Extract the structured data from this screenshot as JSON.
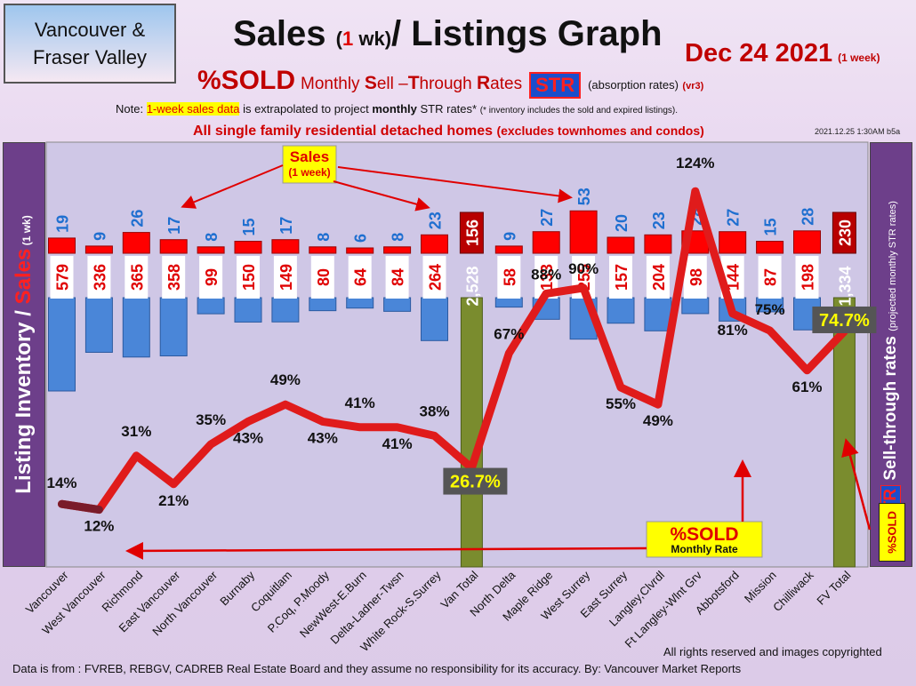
{
  "header": {
    "region_line1": "Vancouver &",
    "region_line2": "Fraser Valley",
    "title_a": "Sales ",
    "title_b": "(",
    "title_c": "1",
    "title_d": " wk)",
    "title_e": "/ Listings Graph",
    "date": "Dec  24  2021",
    "date_note": "(1 week)",
    "sub_sold": "%SOLD",
    "sub_S": "S",
    "sub_ell": "ell –",
    "sub_T": "T",
    "sub_hrough": "hrough ",
    "sub_R": "R",
    "sub_ates": "ates",
    "sub_monthly": "Monthly ",
    "str_badge": "STR",
    "abs_text": "(absorption rates)",
    "version": "(vr3)",
    "note_prefix": "Note: ",
    "note_highlight": "1-week sales data",
    "note_mid": " is extrapolated to project ",
    "note_bold": "monthly",
    "note_end": " STR rates* ",
    "note_tiny": "(* inventory includes the sold and expired listings).",
    "note2_main": "All single family residential detached homes ",
    "note2_paren": "(excludes townhomes and condos)",
    "timestamp": "2021.12.25 1:30AM b5a"
  },
  "left_axis": {
    "a": "Listing Inventory / ",
    "b": "Sales",
    "c": " (1 wk)"
  },
  "right_axis": {
    "a": "%SOLD ",
    "str": "STR",
    "b": " Sell-through rates ",
    "c": "(projected monthly STR rates)"
  },
  "callouts": {
    "sales_title": "Sales",
    "sales_sub": "(1 week)",
    "sold_title": "%SOLD",
    "sold_sub": "Monthly Rate"
  },
  "footer": {
    "copyright": "All rights reserved and  images copyrighted",
    "source": "Data is from : FVREB, REBGV, CADREB Real Estate Board and they assume no responsibility for its accuracy. By: Vancouver Market Reports"
  },
  "colors": {
    "sales_bar": "#ff0000",
    "inventory_bar": "#4a86d8",
    "total_bar": "#7a8c2e",
    "str_line": "#e01b1b",
    "panel": "#6d3f8a"
  },
  "chart_data": {
    "type": "bar",
    "categories": [
      "Vancouver",
      "West Vancouver",
      "Richmond",
      "East Vancouver",
      "North Vancouver",
      "Burnaby",
      "Coquitlam",
      "P.Coq, P.Moody",
      "NewWest-E.Burn",
      "Delta-Ladner-Twsn",
      "White Rock-S.Surrey",
      "Van Total",
      "North Delta",
      "Maple Ridge",
      "West Surrey",
      "East Surrey",
      "Langley,Clvrdl",
      "Ft Langley-Wlnt Grv",
      "Abbotsford",
      "Mission",
      "Chilliwack",
      "FV Total"
    ],
    "sales_labels": [
      "19",
      "9",
      "26",
      "17",
      "8",
      "15",
      "17",
      "8",
      "6",
      "8",
      "23",
      "156",
      "9",
      "27",
      "53",
      "20",
      "23",
      "28",
      "27",
      "15",
      "28",
      "230"
    ],
    "inventory_labels": [
      "579",
      "336",
      "365",
      "358",
      "99",
      "150",
      "149",
      "80",
      "64",
      "84",
      "264",
      "2,528",
      "58",
      "133",
      "255",
      "157",
      "204",
      "98",
      "144",
      "87",
      "198",
      "1,334"
    ],
    "series": [
      {
        "name": "Sales",
        "values": [
          19,
          9,
          26,
          17,
          8,
          15,
          17,
          8,
          6,
          8,
          23,
          156,
          9,
          27,
          53,
          20,
          23,
          28,
          27,
          15,
          28,
          230
        ]
      },
      {
        "name": "Listing Inventory",
        "values": [
          579,
          336,
          365,
          358,
          99,
          150,
          149,
          80,
          64,
          84,
          264,
          2528,
          58,
          133,
          255,
          157,
          204,
          98,
          144,
          87,
          198,
          1334
        ]
      },
      {
        "name": "%SOLD",
        "values": [
          14,
          12,
          31,
          21,
          35,
          43,
          49,
          43,
          41,
          41,
          38,
          26.7,
          67,
          88,
          90,
          55,
          49,
          124,
          81,
          75,
          61,
          74.7
        ]
      }
    ],
    "str_labels": [
      "14%",
      "12%",
      "31%",
      "21%",
      "35%",
      "43%",
      "49%",
      "43%",
      "41%",
      "41%",
      "38%",
      "26.7%",
      "67%",
      "88%",
      "90%",
      "55%",
      "49%",
      "124%",
      "81%",
      "75%",
      "61%",
      "74.7%"
    ],
    "totals_index": [
      11,
      21
    ]
  }
}
